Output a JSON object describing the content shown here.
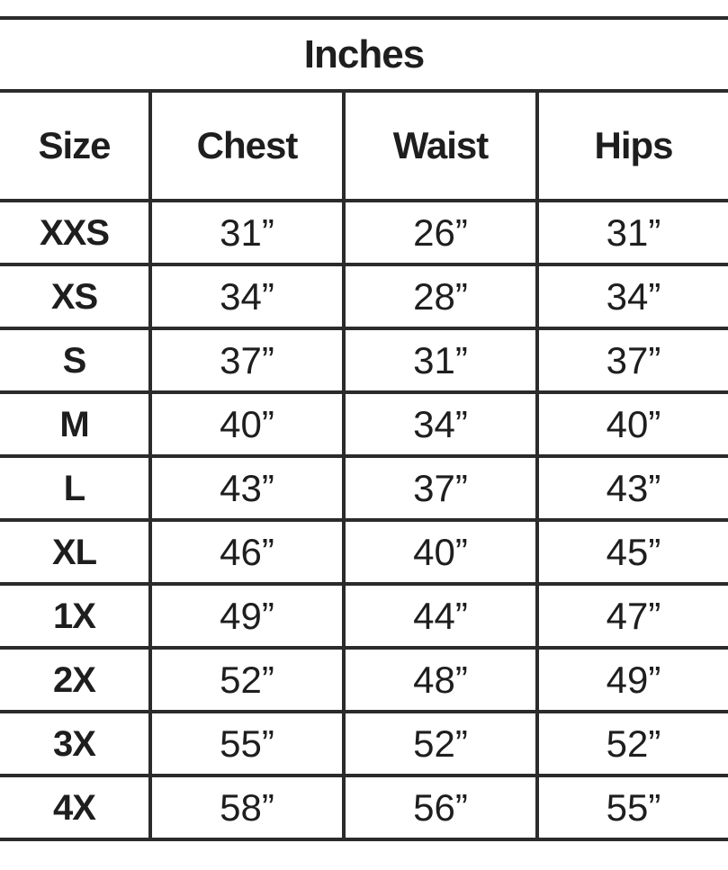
{
  "chart_data": {
    "type": "table",
    "title": "Inches",
    "columns": [
      "Size",
      "Chest",
      "Waist",
      "Hips"
    ],
    "rows": [
      [
        "XXS",
        "31”",
        "26”",
        "31”"
      ],
      [
        "XS",
        "34”",
        "28”",
        "34”"
      ],
      [
        "S",
        "37”",
        "31”",
        "37”"
      ],
      [
        "M",
        "40”",
        "34”",
        "40”"
      ],
      [
        "L",
        "43”",
        "37”",
        "43”"
      ],
      [
        "XL",
        "46”",
        "40”",
        "45”"
      ],
      [
        "1X",
        "49”",
        "44”",
        "47”"
      ],
      [
        "2X",
        "52”",
        "48”",
        "49”"
      ],
      [
        "3X",
        "55”",
        "52”",
        "52”"
      ],
      [
        "4X",
        "58”",
        "56”",
        "55”"
      ]
    ],
    "layout": {
      "unit_header_merged": true,
      "top_row_cut_off": true,
      "bottom_row_cut_off": true
    }
  },
  "colors": {
    "border": "#2b2b2b",
    "text": "#1e1e1e",
    "background": "#ffffff"
  }
}
